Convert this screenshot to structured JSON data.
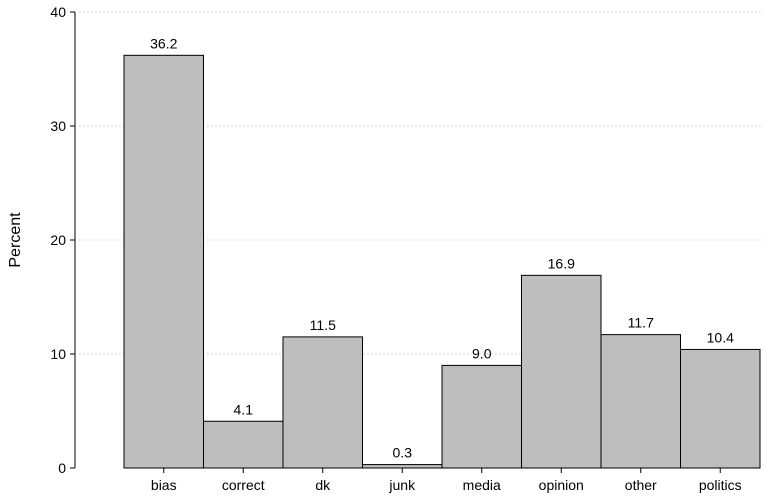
{
  "chart_data": {
    "type": "bar",
    "title": "",
    "xlabel": "",
    "ylabel": "Percent",
    "ylim": [
      0,
      40
    ],
    "yticks": [
      0,
      10,
      20,
      30,
      40
    ],
    "grid": true,
    "categories": [
      "bias",
      "correct",
      "dk",
      "junk",
      "media",
      "opinion",
      "other",
      "politics"
    ],
    "values": [
      36.2,
      4.1,
      11.5,
      0.3,
      9.0,
      16.9,
      11.7,
      10.4
    ],
    "value_labels": [
      "36.2",
      "4.1",
      "11.5",
      "0.3",
      "9.0",
      "16.9",
      "11.7",
      "10.4"
    ],
    "colors": {
      "bar_fill": "#bebebe",
      "bar_stroke": "#000000",
      "grid": "#c8c8c8",
      "axis": "#000000"
    }
  }
}
